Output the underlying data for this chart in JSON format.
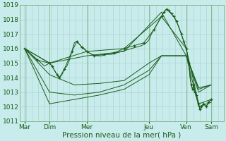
{
  "title": "",
  "xlabel": "Pression niveau de la mer( hPa )",
  "ylabel": "",
  "bg_color": "#c8ecec",
  "grid_color": "#a8cece",
  "line_color": "#1a5c1a",
  "marker_color": "#1a5c1a",
  "ylim": [
    1011,
    1019
  ],
  "yticks": [
    1011,
    1012,
    1013,
    1014,
    1015,
    1016,
    1017,
    1018,
    1019
  ],
  "x_labels": [
    "Mar",
    "Dim",
    "Mer",
    "Jeu",
    "Ven",
    "Sam"
  ],
  "x_positions": [
    0,
    1,
    2.5,
    5,
    6.5,
    7.5
  ],
  "xlim": [
    -0.2,
    8.0
  ],
  "lines": [
    [
      0.0,
      1016.0,
      0.2,
      1015.7,
      0.4,
      1015.4,
      0.6,
      1015.1,
      0.8,
      1014.8,
      1.0,
      1015.0,
      1.1,
      1014.8,
      1.2,
      1014.5,
      1.3,
      1014.2,
      1.4,
      1014.0,
      1.5,
      1014.2,
      1.6,
      1014.6,
      1.7,
      1014.8,
      1.8,
      1015.2,
      1.9,
      1015.8,
      2.0,
      1016.4,
      2.1,
      1016.5,
      2.2,
      1016.3,
      2.3,
      1016.1,
      2.4,
      1016.0,
      2.5,
      1015.8,
      2.7,
      1015.6,
      2.9,
      1015.5,
      3.1,
      1015.5,
      3.3,
      1015.6,
      3.5,
      1015.6,
      3.7,
      1015.7,
      3.9,
      1015.8,
      4.1,
      1015.9,
      4.3,
      1016.0,
      4.5,
      1016.1,
      4.7,
      1016.2,
      4.9,
      1016.4,
      5.0,
      1016.6,
      5.1,
      1017.0,
      5.2,
      1017.3,
      5.3,
      1017.6,
      5.4,
      1017.9,
      5.5,
      1018.2,
      5.6,
      1018.5,
      5.7,
      1018.7,
      5.8,
      1018.6,
      5.9,
      1018.4,
      6.0,
      1018.2,
      6.1,
      1017.9,
      6.2,
      1017.5,
      6.3,
      1017.0,
      6.4,
      1016.5,
      6.5,
      1016.0,
      6.6,
      1015.0,
      6.65,
      1014.0,
      6.7,
      1013.5,
      6.75,
      1013.2,
      6.8,
      1013.5,
      6.85,
      1013.0,
      6.9,
      1012.8,
      6.95,
      1012.5,
      7.0,
      1012.2,
      7.05,
      1011.8,
      7.1,
      1012.0,
      7.2,
      1012.2,
      7.3,
      1012.0,
      7.4,
      1012.3,
      7.5,
      1012.5
    ],
    [
      0.0,
      1016.0,
      1.0,
      1015.0,
      2.5,
      1015.8,
      4.0,
      1016.0,
      5.5,
      1018.2,
      6.5,
      1016.0,
      7.0,
      1012.2,
      7.5,
      1012.5
    ],
    [
      0.0,
      1016.0,
      1.0,
      1015.0,
      2.5,
      1015.5,
      4.0,
      1015.8,
      5.5,
      1018.5,
      6.5,
      1015.5,
      7.0,
      1012.0,
      7.5,
      1012.3
    ],
    [
      0.0,
      1016.0,
      1.0,
      1014.2,
      2.0,
      1013.5,
      3.0,
      1013.6,
      4.0,
      1013.8,
      5.0,
      1015.0,
      5.5,
      1015.5,
      6.5,
      1015.5,
      7.0,
      1013.3,
      7.5,
      1013.5
    ],
    [
      0.0,
      1016.0,
      1.0,
      1013.0,
      2.0,
      1012.8,
      3.0,
      1013.0,
      4.0,
      1013.5,
      5.0,
      1014.5,
      5.5,
      1015.5,
      6.5,
      1015.5,
      7.0,
      1013.2,
      7.5,
      1013.5
    ],
    [
      0.0,
      1016.0,
      1.0,
      1012.2,
      2.0,
      1012.5,
      3.0,
      1012.8,
      4.0,
      1013.2,
      5.0,
      1014.2,
      5.5,
      1015.5,
      6.5,
      1015.5,
      7.0,
      1013.0,
      7.5,
      1013.5
    ]
  ],
  "marker_line": [
    0.0,
    1016.0,
    0.5,
    1015.2,
    1.0,
    1015.0,
    1.1,
    1014.8,
    1.3,
    1014.2,
    1.4,
    1014.0,
    1.6,
    1014.6,
    1.9,
    1015.8,
    2.1,
    1016.5,
    2.3,
    1016.1,
    2.5,
    1015.8,
    2.8,
    1015.5,
    3.2,
    1015.6,
    3.6,
    1015.7,
    4.0,
    1016.0,
    4.4,
    1016.2,
    4.8,
    1016.4,
    5.2,
    1017.3,
    5.5,
    1018.2,
    5.6,
    1018.5,
    5.7,
    1018.7,
    5.8,
    1018.6,
    5.9,
    1018.4,
    6.0,
    1018.2,
    6.1,
    1017.9,
    6.3,
    1017.0,
    6.4,
    1016.5,
    6.5,
    1016.0,
    6.6,
    1015.0,
    6.7,
    1013.5,
    6.75,
    1013.2,
    6.8,
    1013.5,
    6.85,
    1013.0,
    6.9,
    1012.8,
    7.0,
    1012.2,
    7.05,
    1011.8,
    7.1,
    1012.0,
    7.2,
    1012.2,
    7.3,
    1012.0,
    7.4,
    1012.3,
    7.5,
    1012.5
  ]
}
